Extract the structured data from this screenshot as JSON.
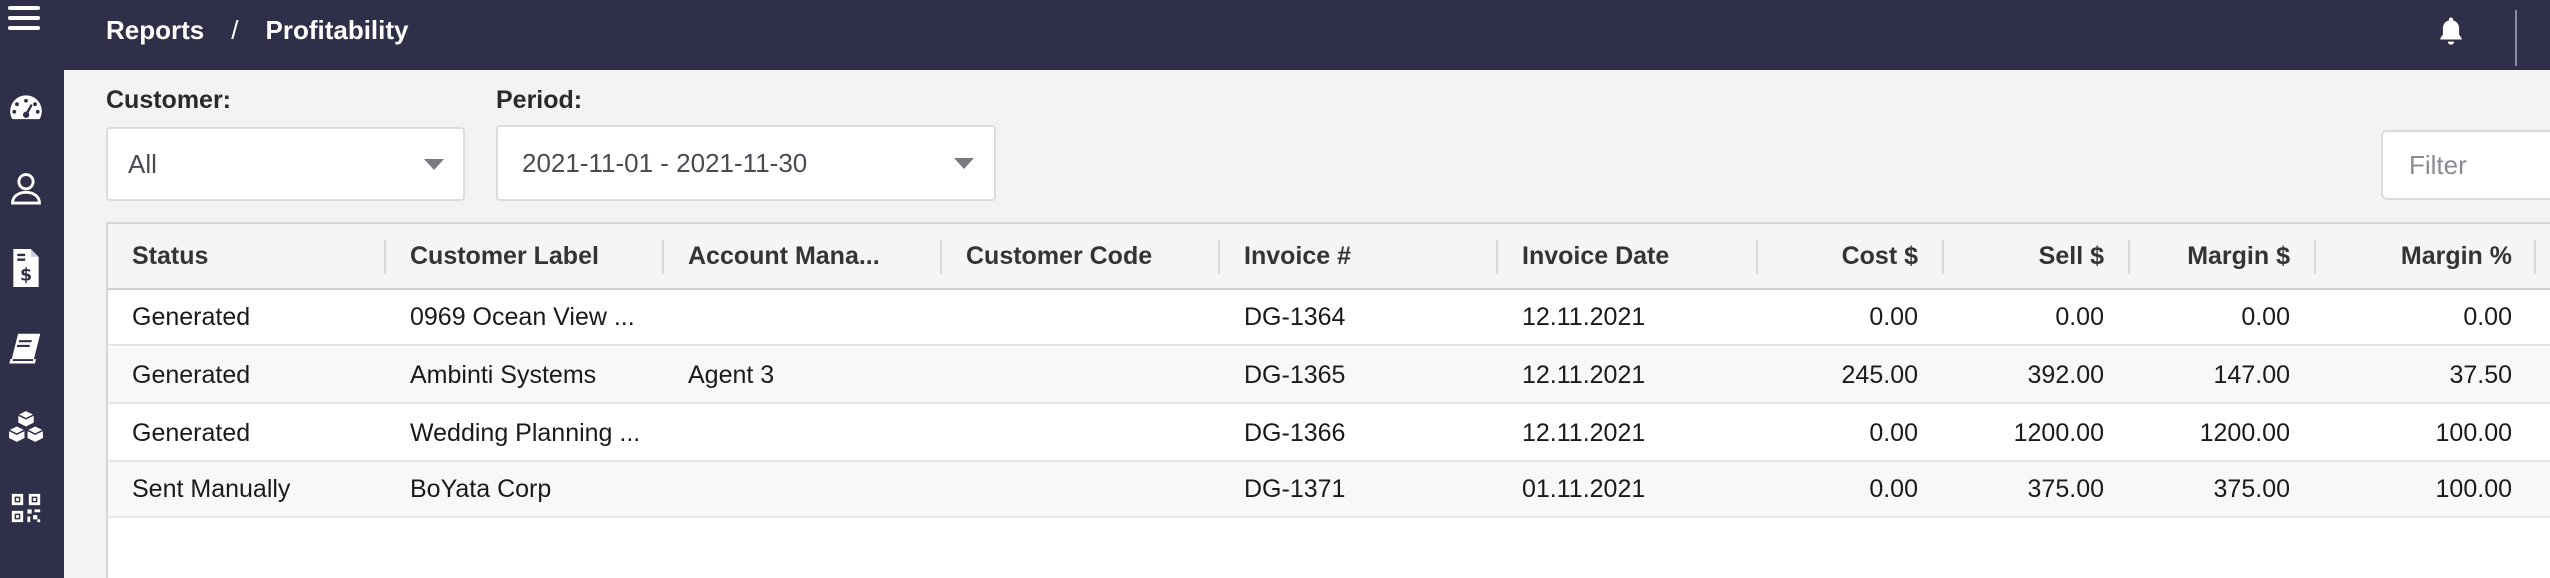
{
  "header": {
    "breadcrumb": [
      "Reports",
      "Profitability"
    ],
    "separator": "/"
  },
  "sidebar": {
    "items": [
      {
        "name": "dashboard"
      },
      {
        "name": "contacts"
      },
      {
        "name": "invoices"
      },
      {
        "name": "catalog"
      },
      {
        "name": "inventory"
      },
      {
        "name": "qr-codes"
      }
    ]
  },
  "filters": {
    "customer_label": "Customer:",
    "customer_value": "All",
    "period_label": "Period:",
    "period_value": "2021-11-01 - 2021-11-30",
    "filter_placeholder": "Filter"
  },
  "table": {
    "columns": [
      "Status",
      "Customer Label",
      "Account Mana...",
      "Customer Code",
      "Invoice #",
      "Invoice Date",
      "Cost $",
      "Sell $",
      "Margin $",
      "Margin %"
    ],
    "rows": [
      {
        "status": "Generated",
        "customer_label": "0969 Ocean View ...",
        "account_manager": "",
        "customer_code": "",
        "invoice": "DG-1364",
        "invoice_date": "12.11.2021",
        "cost": "0.00",
        "sell": "0.00",
        "margin": "0.00",
        "margin_pct": "0.00"
      },
      {
        "status": "Generated",
        "customer_label": "Ambinti Systems",
        "account_manager": "Agent 3",
        "customer_code": "",
        "invoice": "DG-1365",
        "invoice_date": "12.11.2021",
        "cost": "245.00",
        "sell": "392.00",
        "margin": "147.00",
        "margin_pct": "37.50"
      },
      {
        "status": "Generated",
        "customer_label": "Wedding Planning ...",
        "account_manager": "",
        "customer_code": "",
        "invoice": "DG-1366",
        "invoice_date": "12.11.2021",
        "cost": "0.00",
        "sell": "1200.00",
        "margin": "1200.00",
        "margin_pct": "100.00"
      },
      {
        "status": "Sent Manually",
        "customer_label": "BoYata Corp",
        "account_manager": "",
        "customer_code": "",
        "invoice": "DG-1371",
        "invoice_date": "01.11.2021",
        "cost": "0.00",
        "sell": "375.00",
        "margin": "375.00",
        "margin_pct": "100.00"
      }
    ]
  },
  "colors": {
    "nav_bg": "#2f2f4a",
    "page_bg": "#f3f3f4"
  }
}
